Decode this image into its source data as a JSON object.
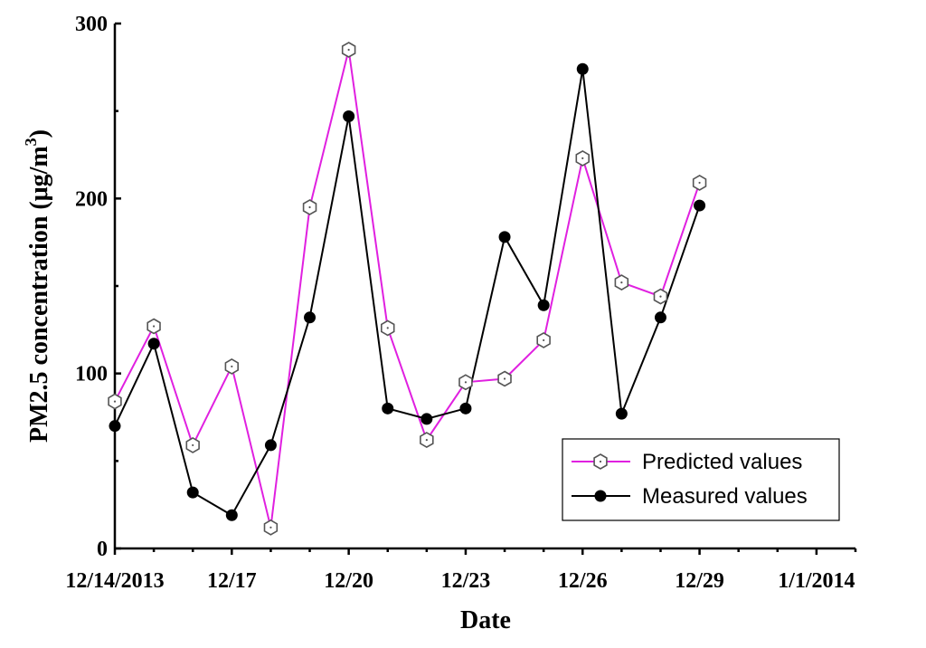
{
  "chart_data": {
    "type": "line",
    "title": "",
    "xlabel": "Date",
    "ylabel_main": "PM2.5 concentration (μg/m",
    "ylabel_sup": "3",
    "ylabel_close": ")",
    "xlim": [
      14,
      33
    ],
    "ylim": [
      0,
      300
    ],
    "y_ticks": [
      0,
      100,
      200,
      300
    ],
    "x_ticks": [
      {
        "x": 14,
        "label": "12/14/2013"
      },
      {
        "x": 17,
        "label": "12/17"
      },
      {
        "x": 20,
        "label": "12/20"
      },
      {
        "x": 23,
        "label": "12/23"
      },
      {
        "x": 26,
        "label": "12/26"
      },
      {
        "x": 29,
        "label": "12/29"
      },
      {
        "x": 32,
        "label": "1/1/2014"
      }
    ],
    "x": [
      14,
      15,
      16,
      17,
      18,
      19,
      20,
      21,
      22,
      23,
      24,
      25,
      26,
      27,
      28,
      29
    ],
    "series": [
      {
        "name": "Predicted values",
        "color": "#e020e0",
        "marker": "hexagon-open",
        "values": [
          84,
          127,
          59,
          104,
          12,
          195,
          285,
          126,
          62,
          95,
          97,
          119,
          223,
          152,
          144,
          209
        ]
      },
      {
        "name": "Measured values",
        "color": "#000000",
        "marker": "circle-filled",
        "values": [
          70,
          117,
          32,
          19,
          59,
          132,
          247,
          80,
          74,
          80,
          178,
          139,
          274,
          77,
          132,
          196
        ]
      }
    ],
    "legend_position": "bottom-right",
    "grid": false
  }
}
